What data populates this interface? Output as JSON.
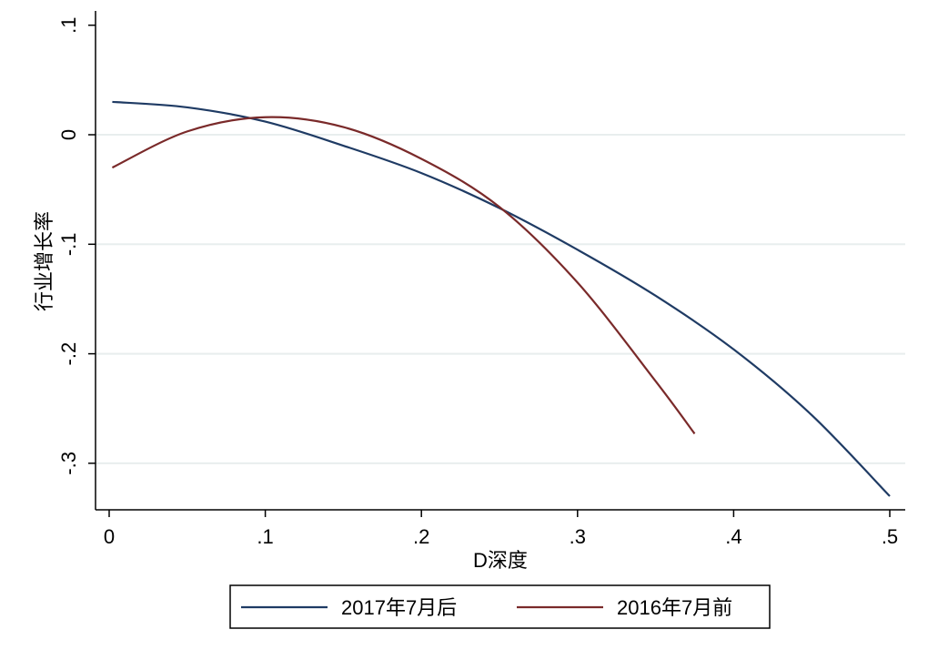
{
  "chart_data": {
    "type": "line",
    "title": "",
    "xlabel": "D深度",
    "ylabel": "行业增长率",
    "xlim": [
      0,
      0.5
    ],
    "ylim": [
      -0.33,
      0.1
    ],
    "x_ticks": [
      {
        "value": 0,
        "label": "0"
      },
      {
        "value": 0.1,
        "label": ".1"
      },
      {
        "value": 0.2,
        "label": ".2"
      },
      {
        "value": 0.3,
        "label": ".3"
      },
      {
        "value": 0.4,
        "label": ".4"
      },
      {
        "value": 0.5,
        "label": ".5"
      }
    ],
    "y_ticks": [
      {
        "value": 0.1,
        "label": ".1"
      },
      {
        "value": 0,
        "label": "0"
      },
      {
        "value": -0.1,
        "label": "-.1"
      },
      {
        "value": -0.2,
        "label": "-.2"
      },
      {
        "value": -0.3,
        "label": "-.3"
      }
    ],
    "grid": "horizontal",
    "legend_position": "bottom",
    "series": [
      {
        "name": "2017年7月后",
        "color": "#1f3b64",
        "points": [
          [
            0.002,
            0.03
          ],
          [
            0.05,
            0.025
          ],
          [
            0.1,
            0.012
          ],
          [
            0.15,
            -0.01
          ],
          [
            0.2,
            -0.035
          ],
          [
            0.25,
            -0.067
          ],
          [
            0.3,
            -0.105
          ],
          [
            0.35,
            -0.147
          ],
          [
            0.4,
            -0.196
          ],
          [
            0.45,
            -0.256
          ],
          [
            0.5,
            -0.33
          ]
        ]
      },
      {
        "name": "2016年7月前",
        "color": "#7a2a2a",
        "points": [
          [
            0.002,
            -0.03
          ],
          [
            0.05,
            0.003
          ],
          [
            0.1,
            0.016
          ],
          [
            0.15,
            0.007
          ],
          [
            0.2,
            -0.022
          ],
          [
            0.25,
            -0.066
          ],
          [
            0.3,
            -0.135
          ],
          [
            0.35,
            -0.225
          ],
          [
            0.375,
            -0.273
          ]
        ]
      }
    ]
  }
}
